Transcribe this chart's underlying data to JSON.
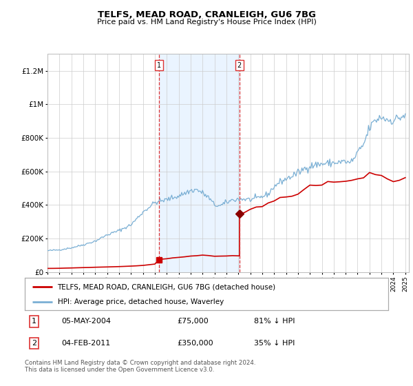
{
  "title": "TELFS, MEAD ROAD, CRANLEIGH, GU6 7BG",
  "subtitle": "Price paid vs. HM Land Registry's House Price Index (HPI)",
  "legend_label_red": "TELFS, MEAD ROAD, CRANLEIGH, GU6 7BG (detached house)",
  "legend_label_blue": "HPI: Average price, detached house, Waverley",
  "annotation1_date": "05-MAY-2004",
  "annotation1_price": "£75,000",
  "annotation1_hpi": "81% ↓ HPI",
  "annotation1_year": 2004.37,
  "annotation1_value": 75000,
  "annotation2_date": "04-FEB-2011",
  "annotation2_price": "£350,000",
  "annotation2_hpi": "35% ↓ HPI",
  "annotation2_year": 2011.09,
  "annotation2_value": 350000,
  "ylim": [
    0,
    1300000
  ],
  "xlim_start": 1995.0,
  "xlim_end": 2025.3,
  "footer": "Contains HM Land Registry data © Crown copyright and database right 2024.\nThis data is licensed under the Open Government Licence v3.0.",
  "color_red": "#cc0000",
  "color_blue": "#7aafd4",
  "color_shading": "#ddeeff",
  "color_vline": "#dd3333",
  "grid_color": "#cccccc"
}
